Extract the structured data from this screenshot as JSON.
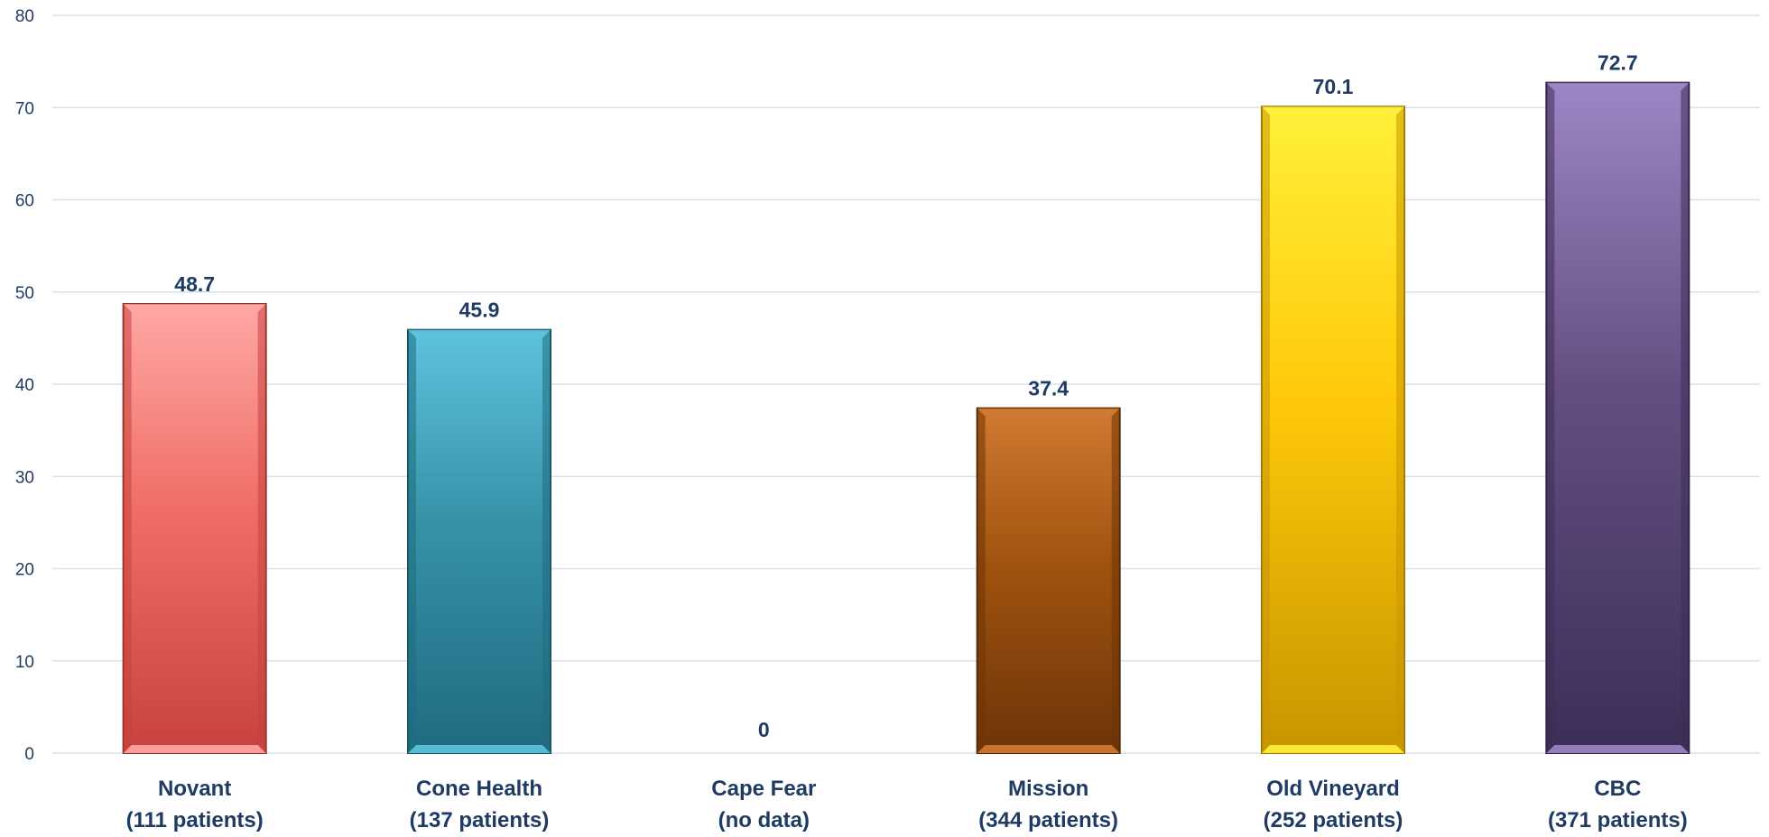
{
  "chart_data": {
    "type": "bar",
    "title": "",
    "xlabel": "",
    "ylabel": "",
    "ylim": [
      0,
      80
    ],
    "yticks": [
      0,
      10,
      20,
      30,
      40,
      50,
      60,
      70,
      80
    ],
    "grid": true,
    "legend": "none",
    "categories": [
      {
        "name": "Novant",
        "sub": "(111 patients)"
      },
      {
        "name": "Cone Health",
        "sub": "(137 patients)"
      },
      {
        "name": "Cape Fear",
        "sub": "(no data)"
      },
      {
        "name": "Mission",
        "sub": "(344 patients)"
      },
      {
        "name": "Old Vineyard",
        "sub": "(252 patients)"
      },
      {
        "name": "CBC",
        "sub": "(371 patients)"
      }
    ],
    "values": [
      48.7,
      45.9,
      0,
      37.4,
      70.1,
      72.7
    ],
    "value_labels": [
      "48.7",
      "45.9",
      "0",
      "37.4",
      "70.1",
      "72.7"
    ],
    "bar_colors": [
      {
        "dark": "#c8423d",
        "mid": "#ef6f66",
        "light": "#ffa7a5",
        "edge": "#8a2f2c"
      },
      {
        "dark": "#1f6b80",
        "mid": "#3792a8",
        "light": "#5ec3dc",
        "edge": "#17505f"
      },
      {
        "dark": "#999999",
        "mid": "#bbbbbb",
        "light": "#dddddd",
        "edge": "#777777"
      },
      {
        "dark": "#6e3408",
        "mid": "#a0530f",
        "light": "#d07a32",
        "edge": "#4d2406"
      },
      {
        "dark": "#c89500",
        "mid": "#ffc90a",
        "light": "#fff03a",
        "edge": "#9a7400"
      },
      {
        "dark": "#3c2e57",
        "mid": "#654f82",
        "light": "#9d86c4",
        "edge": "#2b2140"
      }
    ],
    "text_color": "#1f3b63",
    "grid_color": "#d6e2ee"
  }
}
